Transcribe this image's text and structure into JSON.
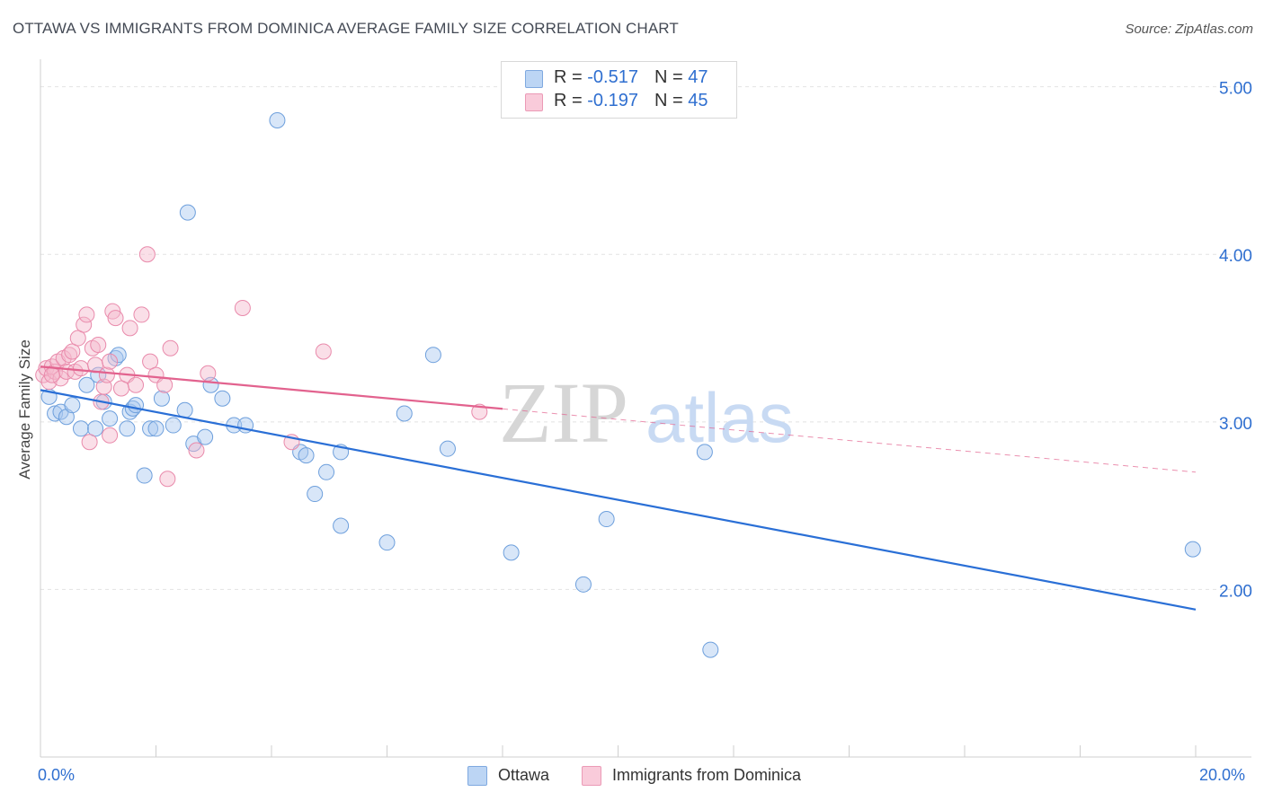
{
  "header": {
    "title": "OTTAWA VS IMMIGRANTS FROM DOMINICA AVERAGE FAMILY SIZE CORRELATION CHART",
    "source": "Source: ZipAtlas.com"
  },
  "watermark": {
    "zip": "ZIP",
    "atlas": "atlas"
  },
  "legend": {
    "rows": [
      {
        "r_label": "R = ",
        "r_value": "-0.517",
        "n_label": "N = ",
        "n_value": "47",
        "color": "#a9c8f0"
      },
      {
        "r_label": "R = ",
        "r_value": "-0.197",
        "n_label": "N = ",
        "n_value": "45",
        "color": "#f5b8cc"
      }
    ]
  },
  "bottom_legend": {
    "items": [
      {
        "label": "Ottawa",
        "color": "#a9c8f0"
      },
      {
        "label": "Immigrants from Dominica",
        "color": "#f5b8cc"
      }
    ]
  },
  "chart_data": {
    "type": "scatter",
    "title": "OTTAWA VS IMMIGRANTS FROM DOMINICA AVERAGE FAMILY SIZE CORRELATION CHART",
    "xlabel": "",
    "ylabel": "Average Family Size",
    "xlim": [
      0,
      20
    ],
    "ylim": [
      1.0,
      5.1
    ],
    "x_tick_labels": {
      "min": "0.0%",
      "max": "20.0%"
    },
    "y_ticks": [
      {
        "value": 2.0,
        "label": "2.00"
      },
      {
        "value": 3.0,
        "label": "3.00"
      },
      {
        "value": 4.0,
        "label": "4.00"
      },
      {
        "value": 5.0,
        "label": "5.00"
      }
    ],
    "grid": true,
    "legend_position": "top-center",
    "series": [
      {
        "name": "Ottawa",
        "color": "#a9c8f0",
        "edge_color": "#6d9fdc",
        "trend_color": "#2a6fd6",
        "trend": {
          "x0": 0.0,
          "y0": 3.19,
          "x1": 20.0,
          "y1": 1.88,
          "x_solid_end": 20.0
        },
        "points": [
          [
            0.15,
            3.15
          ],
          [
            0.25,
            3.05
          ],
          [
            0.35,
            3.06
          ],
          [
            0.45,
            3.03
          ],
          [
            0.55,
            3.1
          ],
          [
            0.7,
            2.96
          ],
          [
            0.8,
            3.22
          ],
          [
            0.95,
            2.96
          ],
          [
            1.0,
            3.28
          ],
          [
            1.1,
            3.12
          ],
          [
            1.2,
            3.02
          ],
          [
            1.3,
            3.38
          ],
          [
            1.35,
            3.4
          ],
          [
            1.5,
            2.96
          ],
          [
            1.55,
            3.06
          ],
          [
            1.6,
            3.08
          ],
          [
            1.65,
            3.1
          ],
          [
            1.8,
            2.68
          ],
          [
            1.9,
            2.96
          ],
          [
            2.0,
            2.96
          ],
          [
            2.1,
            3.14
          ],
          [
            2.3,
            2.98
          ],
          [
            2.5,
            3.07
          ],
          [
            2.55,
            4.25
          ],
          [
            2.65,
            2.87
          ],
          [
            2.85,
            2.91
          ],
          [
            2.95,
            3.22
          ],
          [
            3.15,
            3.14
          ],
          [
            3.35,
            2.98
          ],
          [
            3.55,
            2.98
          ],
          [
            4.1,
            4.8
          ],
          [
            4.5,
            2.82
          ],
          [
            4.6,
            2.8
          ],
          [
            4.75,
            2.57
          ],
          [
            4.95,
            2.7
          ],
          [
            5.2,
            2.38
          ],
          [
            5.2,
            2.82
          ],
          [
            6.0,
            2.28
          ],
          [
            6.3,
            3.05
          ],
          [
            6.8,
            3.4
          ],
          [
            7.05,
            2.84
          ],
          [
            8.15,
            2.22
          ],
          [
            9.4,
            2.03
          ],
          [
            9.8,
            2.42
          ],
          [
            11.5,
            2.82
          ],
          [
            11.6,
            1.64
          ],
          [
            19.95,
            2.24
          ]
        ]
      },
      {
        "name": "Immigrants from Dominica",
        "color": "#f5b8cc",
        "edge_color": "#e98aab",
        "trend_color": "#e2628e",
        "trend": {
          "x0": 0.0,
          "y0": 3.33,
          "x1": 20.0,
          "y1": 2.7,
          "x_solid_end": 8.0
        },
        "points": [
          [
            0.05,
            3.28
          ],
          [
            0.1,
            3.32
          ],
          [
            0.15,
            3.24
          ],
          [
            0.2,
            3.33
          ],
          [
            0.25,
            3.3
          ],
          [
            0.3,
            3.36
          ],
          [
            0.35,
            3.26
          ],
          [
            0.4,
            3.38
          ],
          [
            0.45,
            3.3
          ],
          [
            0.5,
            3.4
          ],
          [
            0.55,
            3.42
          ],
          [
            0.6,
            3.3
          ],
          [
            0.65,
            3.5
          ],
          [
            0.7,
            3.32
          ],
          [
            0.75,
            3.58
          ],
          [
            0.8,
            3.64
          ],
          [
            0.85,
            2.88
          ],
          [
            0.9,
            3.44
          ],
          [
            0.95,
            3.34
          ],
          [
            1.0,
            3.46
          ],
          [
            1.05,
            3.12
          ],
          [
            1.1,
            3.21
          ],
          [
            1.15,
            3.28
          ],
          [
            1.2,
            3.36
          ],
          [
            1.25,
            3.66
          ],
          [
            1.3,
            3.62
          ],
          [
            1.4,
            3.2
          ],
          [
            1.5,
            3.28
          ],
          [
            1.55,
            3.56
          ],
          [
            1.65,
            3.22
          ],
          [
            1.75,
            3.64
          ],
          [
            1.85,
            4.0
          ],
          [
            1.9,
            3.36
          ],
          [
            2.0,
            3.28
          ],
          [
            2.15,
            3.22
          ],
          [
            2.2,
            2.66
          ],
          [
            2.25,
            3.44
          ],
          [
            1.2,
            2.92
          ],
          [
            2.7,
            2.83
          ],
          [
            2.9,
            3.29
          ],
          [
            3.5,
            3.68
          ],
          [
            4.35,
            2.88
          ],
          [
            4.9,
            3.42
          ],
          [
            7.6,
            3.06
          ],
          [
            0.2,
            3.28
          ]
        ]
      }
    ]
  }
}
